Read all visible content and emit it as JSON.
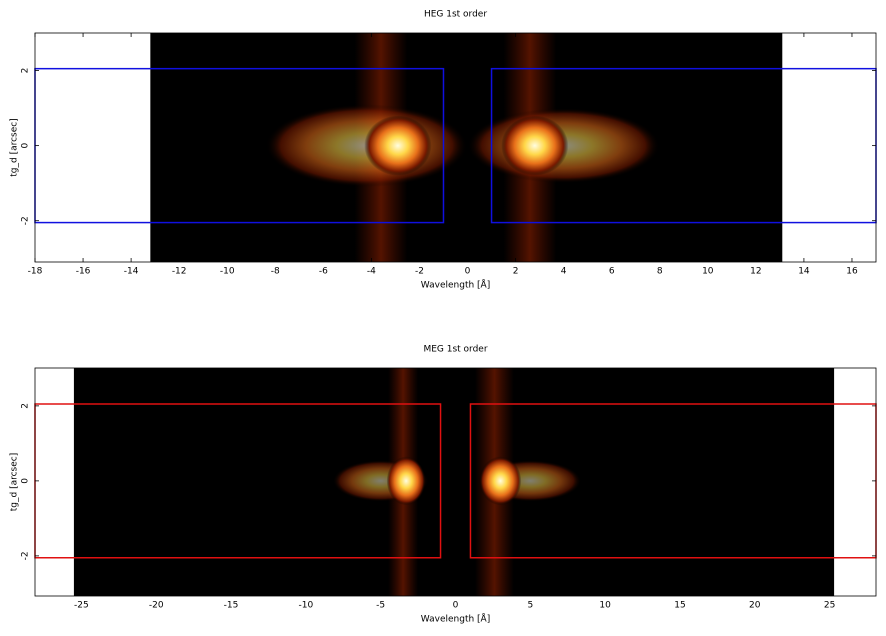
{
  "chart_data": [
    {
      "type": "image",
      "title": "HEG 1st order",
      "xlabel": "Wavelength [Å]",
      "ylabel": "tg_d [arcsec]",
      "xlim": [
        -18,
        17
      ],
      "ylim": [
        -3.1,
        3
      ],
      "xticks": [
        -18,
        -16,
        -14,
        -12,
        -10,
        -8,
        -6,
        -4,
        -2,
        0,
        2,
        4,
        6,
        8,
        10,
        12,
        14,
        16
      ],
      "yticks": [
        -2,
        0,
        2
      ],
      "image_x": [
        -13.2,
        13.1
      ],
      "stripes": [
        {
          "x": -3.6,
          "w": 2.2
        },
        {
          "x": 2.6,
          "w": 2.2
        }
      ],
      "blobs": [
        {
          "x": -4.2,
          "y": 0,
          "rx": 4.2,
          "ry": 1.1,
          "level": 0.55
        },
        {
          "x": -2.9,
          "y": 0,
          "rx": 1.4,
          "ry": 0.8,
          "level": 1
        },
        {
          "x": 4.0,
          "y": 0,
          "rx": 4.0,
          "ry": 1.0,
          "level": 0.55
        },
        {
          "x": 2.8,
          "y": 0,
          "rx": 1.4,
          "ry": 0.8,
          "level": 1
        }
      ],
      "regions": [
        {
          "x": [
            -18,
            -1
          ],
          "y": [
            -2.05,
            2.05
          ]
        },
        {
          "x": [
            1,
            17
          ],
          "y": [
            -2.05,
            2.05
          ]
        }
      ],
      "region_color": "#1010e0"
    },
    {
      "type": "image",
      "title": "MEG 1st order",
      "xlabel": "Wavelength [Å]",
      "ylabel": "tg_d [arcsec]",
      "xlim": [
        -28.1,
        28.1
      ],
      "ylim": [
        -3.07,
        3.01
      ],
      "xticks": [
        -25,
        -20,
        -15,
        -10,
        -5,
        0,
        5,
        10,
        15,
        20,
        25
      ],
      "yticks": [
        -2,
        0,
        2
      ],
      "image_x": [
        -25.5,
        25.3
      ],
      "stripes": [
        {
          "x": -3.5,
          "w": 2.0
        },
        {
          "x": 2.6,
          "w": 2.6
        }
      ],
      "blobs": [
        {
          "x": -5.0,
          "y": 0,
          "rx": 3.2,
          "ry": 0.55,
          "level": 0.5
        },
        {
          "x": -3.3,
          "y": 0,
          "rx": 1.3,
          "ry": 0.65,
          "level": 1
        },
        {
          "x": 5.0,
          "y": 0,
          "rx": 3.4,
          "ry": 0.55,
          "level": 0.5
        },
        {
          "x": 3.0,
          "y": 0,
          "rx": 1.4,
          "ry": 0.65,
          "level": 1
        }
      ],
      "regions": [
        {
          "x": [
            -28.1,
            -1
          ],
          "y": [
            -2.05,
            2.05
          ]
        },
        {
          "x": [
            1,
            28.1
          ],
          "y": [
            -2.05,
            2.05
          ]
        }
      ],
      "region_color": "#e01010"
    }
  ]
}
